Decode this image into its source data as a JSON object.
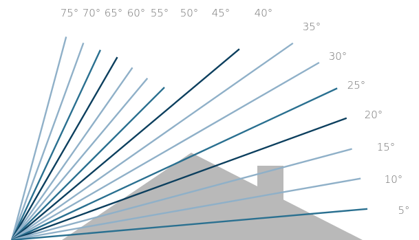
{
  "colors": {
    "background": "#ffffff",
    "house": "#b9b9b9",
    "light": "#8fb0c8",
    "mid": "#2a7090",
    "dark": "#0c3f5e",
    "label": "#6f6f6f"
  },
  "diagram": {
    "angles": [
      {
        "value": 75,
        "label": "75°",
        "tone": "light"
      },
      {
        "value": 70,
        "label": "70°",
        "tone": "light"
      },
      {
        "value": 65,
        "label": "65°",
        "tone": "mid"
      },
      {
        "value": 60,
        "label": "60°",
        "tone": "dark"
      },
      {
        "value": 55,
        "label": "55°",
        "tone": "light"
      },
      {
        "value": 50,
        "label": "50°",
        "tone": "light"
      },
      {
        "value": 45,
        "label": "45°",
        "tone": "mid"
      },
      {
        "value": 40,
        "label": "40°",
        "tone": "dark"
      },
      {
        "value": 35,
        "label": "35°",
        "tone": "light"
      },
      {
        "value": 30,
        "label": "30°",
        "tone": "light"
      },
      {
        "value": 25,
        "label": "25°",
        "tone": "mid"
      },
      {
        "value": 20,
        "label": "20°",
        "tone": "dark"
      },
      {
        "value": 15,
        "label": "15°",
        "tone": "light"
      },
      {
        "value": 10,
        "label": "10°",
        "tone": "light"
      },
      {
        "value": 5,
        "label": "5°",
        "tone": "mid"
      }
    ]
  }
}
